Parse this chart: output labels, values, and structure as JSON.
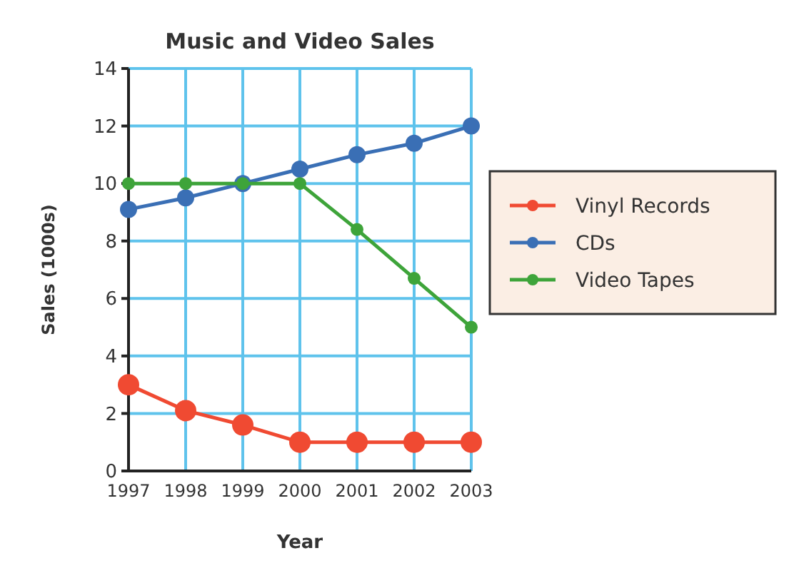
{
  "chart_data": {
    "type": "line",
    "title": "Music and Video Sales",
    "xlabel": "Year",
    "ylabel": "Sales (1000s)",
    "categories": [
      "1997",
      "1998",
      "1999",
      "2000",
      "2001",
      "2002",
      "2003"
    ],
    "series": [
      {
        "name": "Vinyl Records",
        "color": "#f04a32",
        "values": [
          3,
          2.1,
          1.6,
          1,
          1,
          1,
          1
        ]
      },
      {
        "name": "CDs",
        "color": "#3a6fb5",
        "values": [
          9.1,
          9.5,
          10,
          10.5,
          11,
          11.4,
          12
        ]
      },
      {
        "name": "Video Tapes",
        "color": "#3ea43a",
        "values": [
          10,
          10,
          10,
          10,
          8.4,
          6.7,
          5
        ]
      }
    ],
    "ylim": [
      0,
      14
    ],
    "yticks": [
      0,
      2,
      4,
      6,
      8,
      10,
      12,
      14
    ],
    "grid": true,
    "legend": "right",
    "marker": "circle",
    "line_style": "solid"
  }
}
